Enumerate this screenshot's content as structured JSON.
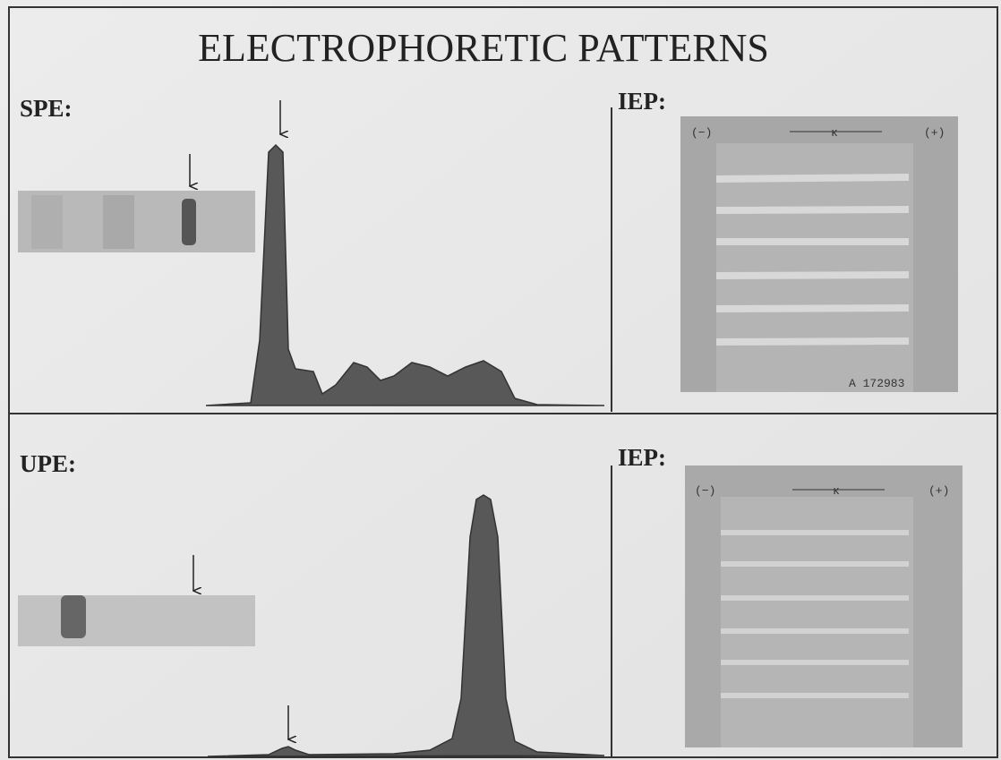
{
  "title": "ELECTROPHORETIC PATTERNS",
  "panels": [
    {
      "label": "SPE:"
    },
    {
      "label": "IEP:",
      "gel_labels": {
        "left": "(−)",
        "right": "(+)",
        "marker": "κ",
        "code": "A 172983"
      }
    },
    {
      "label": "UPE:"
    },
    {
      "label": "IEP:",
      "gel_labels": {
        "left": "(−)",
        "right": "(+)",
        "marker": "κ"
      }
    }
  ]
}
